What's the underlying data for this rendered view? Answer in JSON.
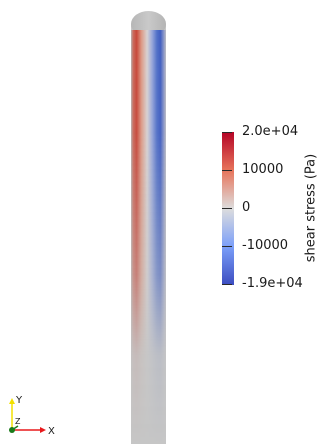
{
  "colorbar": {
    "title": "shear stress (Pa)",
    "max_label": "2.0e+04",
    "tick_10000": "10000",
    "tick_0": "0",
    "tick_neg10000": "-10000",
    "min_label": "-1.9e+04",
    "range": [
      -19000,
      20000
    ],
    "colors": {
      "max": "#b40426",
      "mid": "#dddddd",
      "min": "#3b4cc0"
    }
  },
  "axes": {
    "x_label": "X",
    "y_label": "Y",
    "z_label": "Z",
    "x_color": "#e8191c",
    "y_color": "#f2e000",
    "z_color": "#1a7a1a"
  },
  "model": {
    "rod_base_color": "#c6c6c6"
  }
}
